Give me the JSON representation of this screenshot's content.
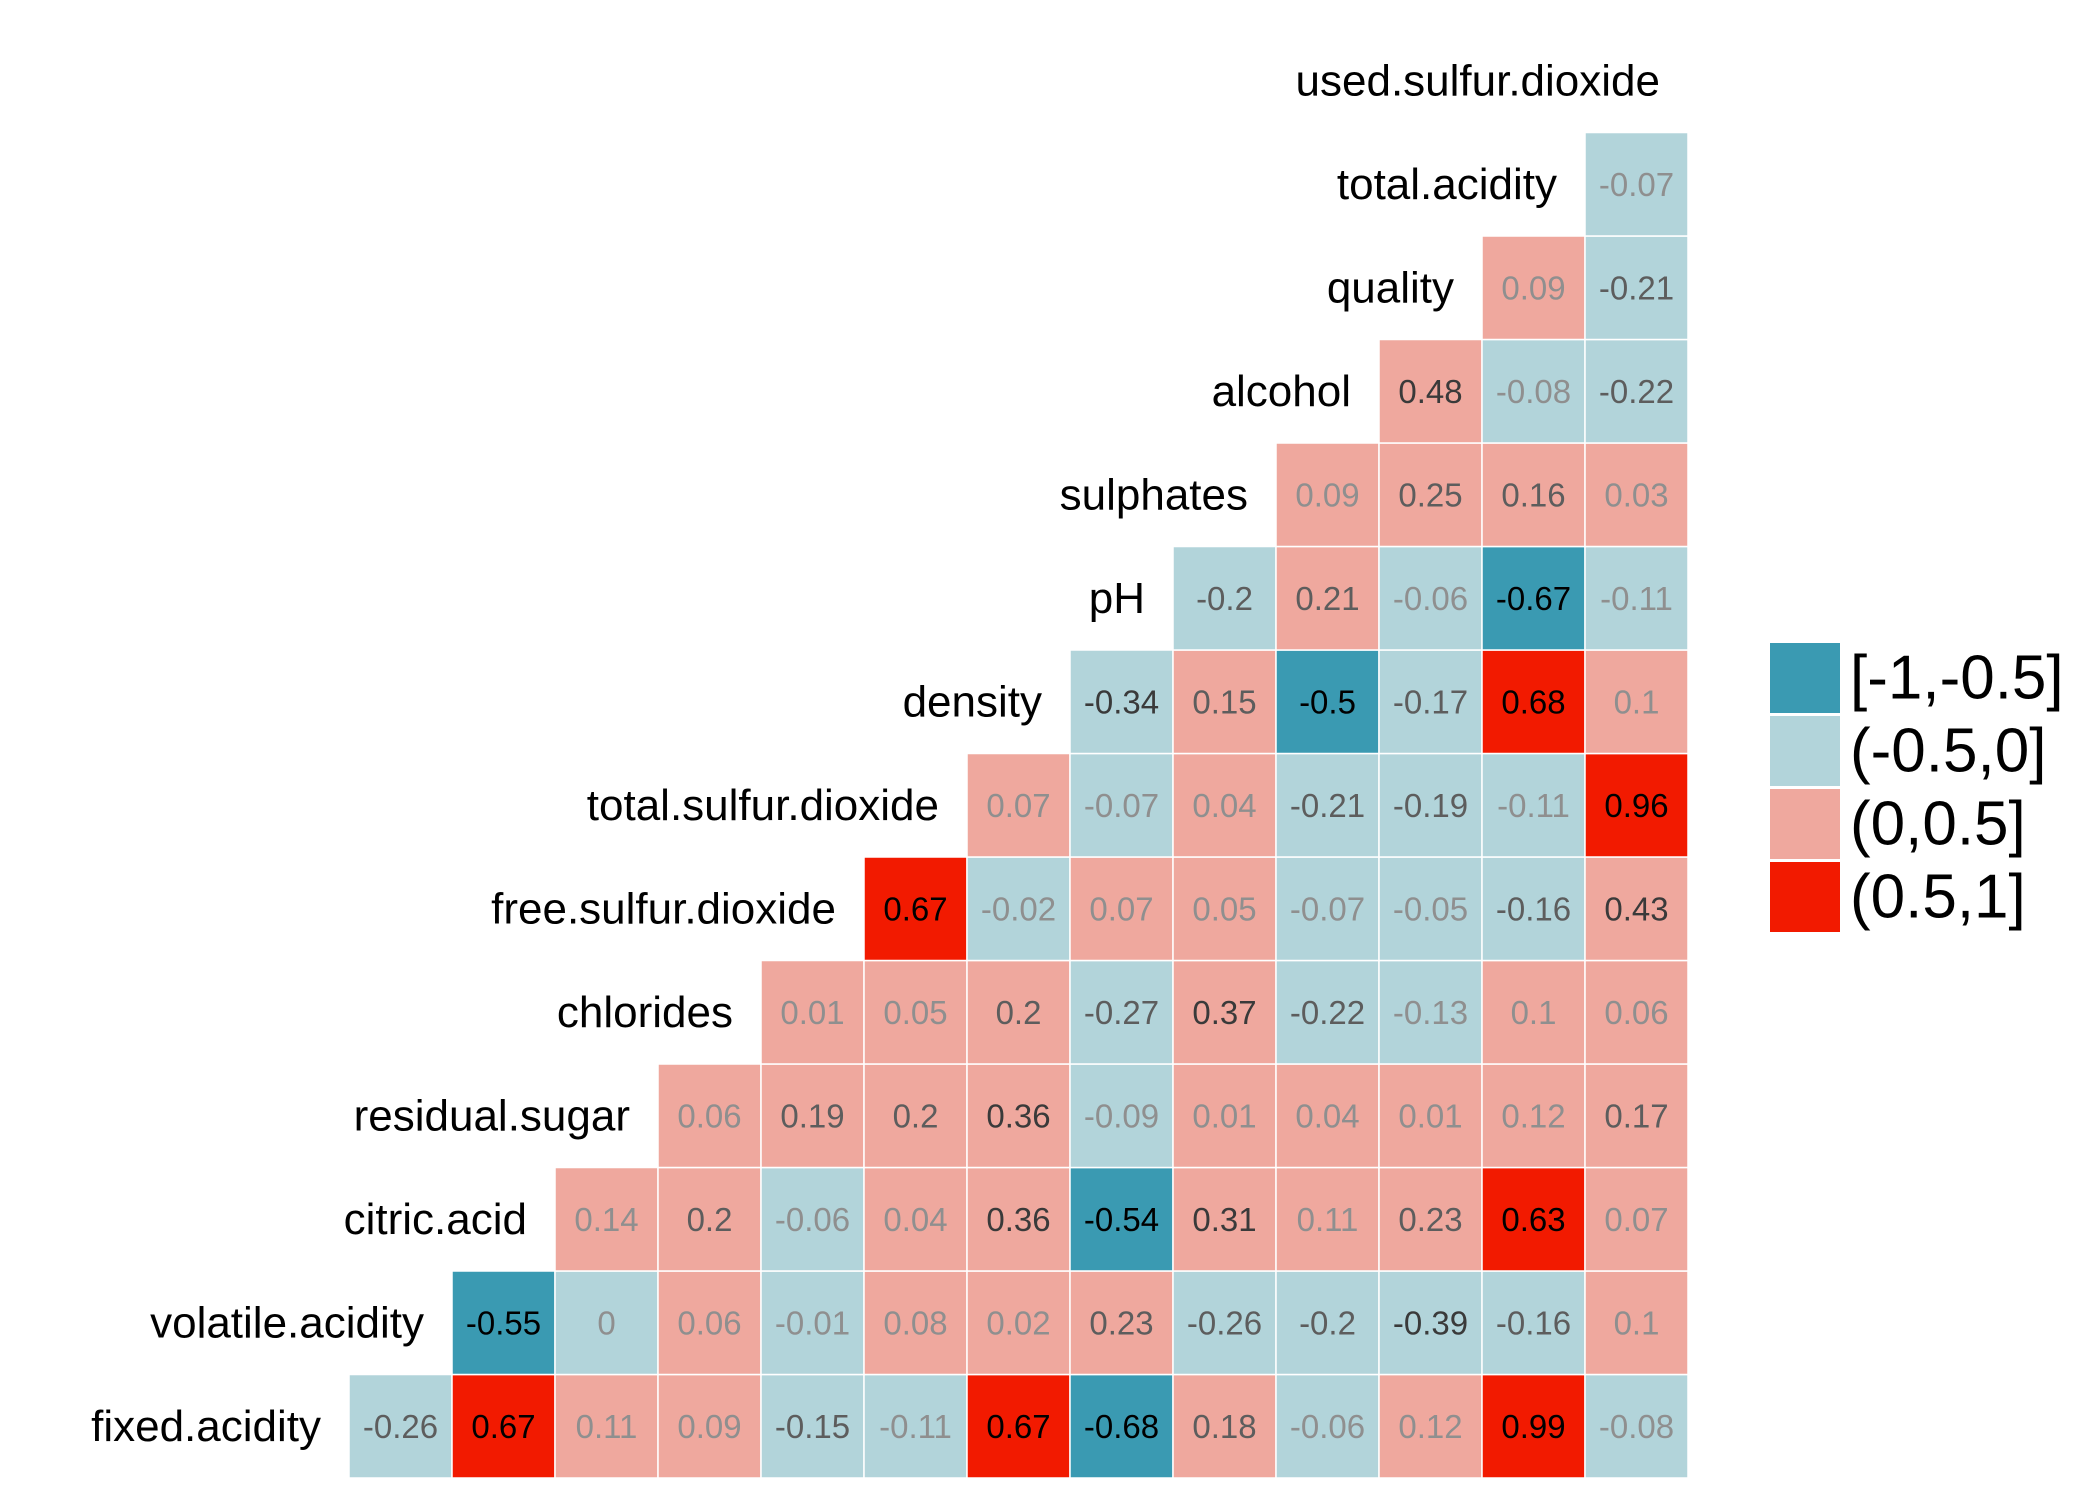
{
  "chart_data": {
    "type": "heatmap",
    "title": "",
    "variables": [
      "fixed.acidity",
      "volatile.acidity",
      "citric.acid",
      "residual.sugar",
      "chlorides",
      "free.sulfur.dioxide",
      "total.sulfur.dioxide",
      "density",
      "pH",
      "sulphates",
      "alcohol",
      "quality",
      "total.acidity",
      "used.sulfur.dioxide"
    ],
    "rows": [
      {
        "label": "fixed.acidity",
        "values": [
          -0.26,
          0.67,
          0.11,
          0.09,
          -0.15,
          -0.11,
          0.67,
          -0.68,
          0.18,
          -0.06,
          0.12,
          0.99,
          -0.08
        ]
      },
      {
        "label": "volatile.acidity",
        "values": [
          -0.55,
          0,
          0.06,
          -0.01,
          0.08,
          0.02,
          0.23,
          -0.26,
          -0.2,
          -0.39,
          -0.16,
          0.1
        ]
      },
      {
        "label": "citric.acid",
        "values": [
          0.14,
          0.2,
          -0.06,
          0.04,
          0.36,
          -0.54,
          0.31,
          0.11,
          0.23,
          0.63,
          0.07
        ]
      },
      {
        "label": "residual.sugar",
        "values": [
          0.06,
          0.19,
          0.2,
          0.36,
          -0.09,
          0.01,
          0.04,
          0.01,
          0.12,
          0.17
        ]
      },
      {
        "label": "chlorides",
        "values": [
          0.01,
          0.05,
          0.2,
          -0.27,
          0.37,
          -0.22,
          -0.13,
          0.1,
          0.06
        ]
      },
      {
        "label": "free.sulfur.dioxide",
        "values": [
          0.67,
          -0.02,
          0.07,
          0.05,
          -0.07,
          -0.05,
          -0.16,
          0.43
        ]
      },
      {
        "label": "total.sulfur.dioxide",
        "values": [
          0.07,
          -0.07,
          0.04,
          -0.21,
          -0.19,
          -0.11,
          0.96
        ]
      },
      {
        "label": "density",
        "values": [
          -0.34,
          0.15,
          -0.5,
          -0.17,
          0.68,
          0.1
        ]
      },
      {
        "label": "pH",
        "values": [
          -0.2,
          0.21,
          -0.06,
          -0.67,
          -0.11
        ]
      },
      {
        "label": "sulphates",
        "values": [
          0.09,
          0.25,
          0.16,
          0.03
        ]
      },
      {
        "label": "alcohol",
        "values": [
          0.48,
          -0.08,
          -0.22
        ]
      },
      {
        "label": "quality",
        "values": [
          0.09,
          -0.21
        ]
      },
      {
        "label": "total.acidity",
        "values": [
          -0.07
        ]
      },
      {
        "label": "used.sulfur.dioxide",
        "values": []
      }
    ],
    "legend": {
      "placement": "right",
      "bins": [
        {
          "label": "[-1,-0.5]",
          "color": "#3a9ab2"
        },
        {
          "label": "(-0.5,0]",
          "color": "#b2d4da"
        },
        {
          "label": "(0,0.5]",
          "color": "#efa89e"
        },
        {
          "label": "(0.5,1]",
          "color": "#f21a00"
        }
      ]
    },
    "grid": false
  }
}
